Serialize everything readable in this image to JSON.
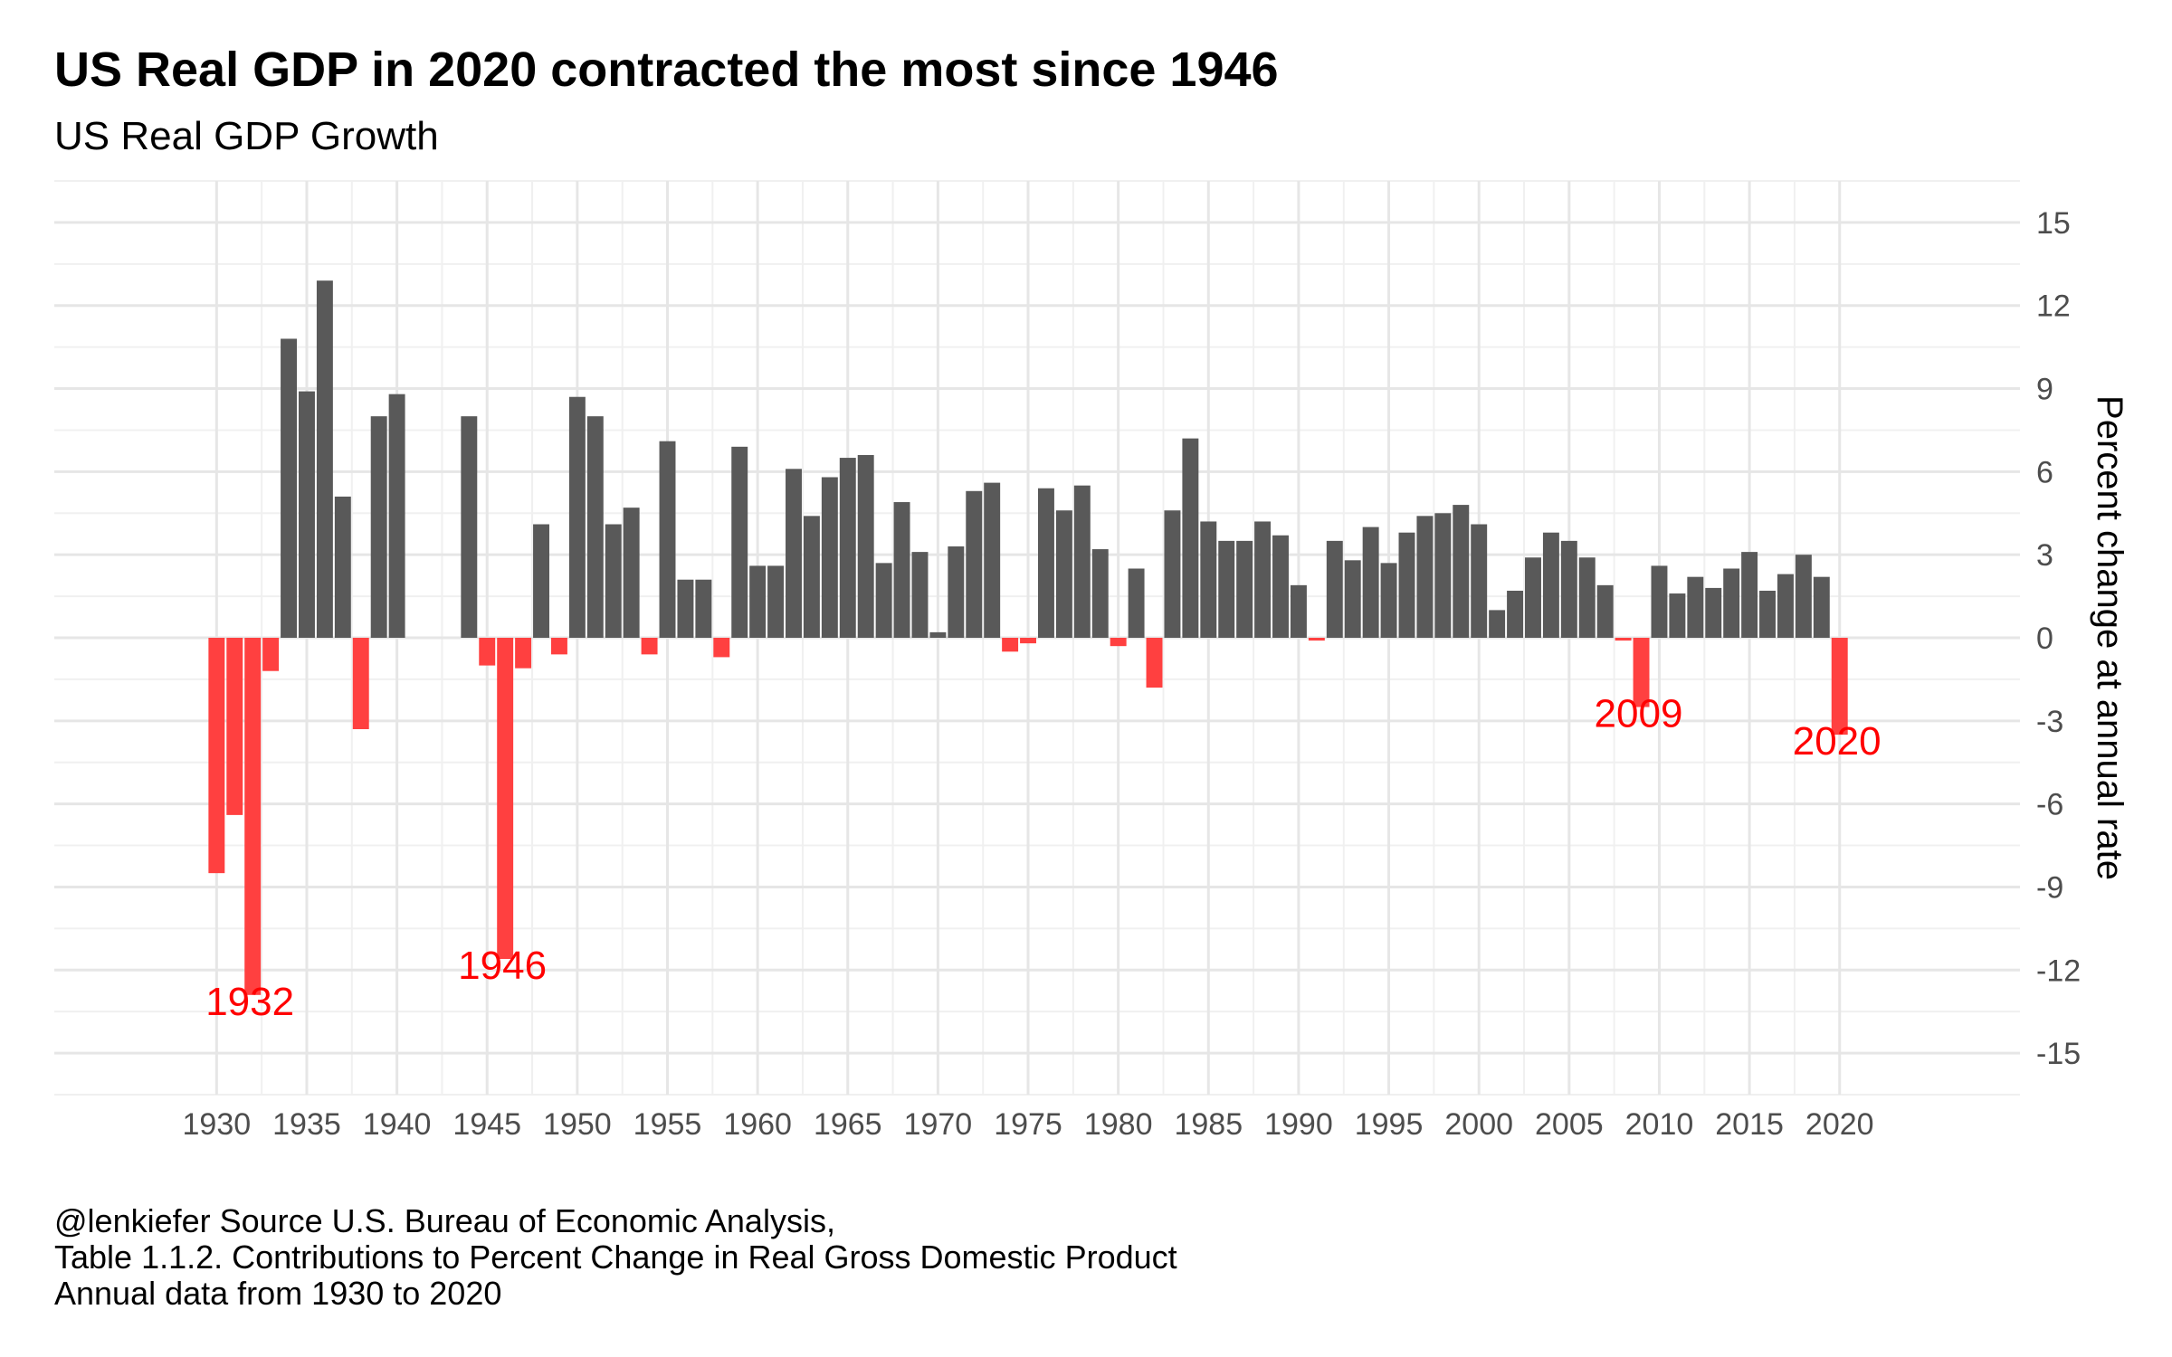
{
  "chart_data": {
    "type": "bar",
    "title": "US Real GDP in 2020 contracted the most since 1946",
    "subtitle": "US Real GDP Growth",
    "ylabel": "Percent change at annual rate",
    "xlabel": "",
    "ylim": [
      -16.5,
      16.5
    ],
    "xlim": [
      1921,
      2030
    ],
    "y_ticks": [
      15,
      12,
      9,
      6,
      3,
      0,
      -3,
      -6,
      -9,
      -12,
      -15
    ],
    "y_tick_labels": [
      "15",
      "12",
      "9",
      "6",
      "3",
      "0",
      "-3",
      "-6",
      "-9",
      "-12",
      "-15"
    ],
    "x_ticks": [
      1930,
      1935,
      1940,
      1945,
      1950,
      1955,
      1960,
      1965,
      1970,
      1975,
      1980,
      1985,
      1990,
      1995,
      2000,
      2005,
      2010,
      2015,
      2020
    ],
    "x_tick_labels": [
      "1930",
      "1935",
      "1940",
      "1945",
      "1950",
      "1955",
      "1960",
      "1965",
      "1970",
      "1975",
      "1980",
      "1985",
      "1990",
      "1995",
      "2000",
      "2005",
      "2010",
      "2015",
      "2020"
    ],
    "grid": true,
    "positive_color": "#595959",
    "negative_color": "#ff4040",
    "annotation_color": "#ff0000",
    "years": [
      1930,
      1931,
      1932,
      1933,
      1934,
      1935,
      1936,
      1937,
      1938,
      1939,
      1940,
      1941,
      1942,
      1943,
      1944,
      1945,
      1946,
      1947,
      1948,
      1949,
      1950,
      1951,
      1952,
      1953,
      1954,
      1955,
      1956,
      1957,
      1958,
      1959,
      1960,
      1961,
      1962,
      1963,
      1964,
      1965,
      1966,
      1967,
      1968,
      1969,
      1970,
      1971,
      1972,
      1973,
      1974,
      1975,
      1976,
      1977,
      1978,
      1979,
      1980,
      1981,
      1982,
      1983,
      1984,
      1985,
      1986,
      1987,
      1988,
      1989,
      1990,
      1991,
      1992,
      1993,
      1994,
      1995,
      1996,
      1997,
      1998,
      1999,
      2000,
      2001,
      2002,
      2003,
      2004,
      2005,
      2006,
      2007,
      2008,
      2009,
      2010,
      2011,
      2012,
      2013,
      2014,
      2015,
      2016,
      2017,
      2018,
      2019,
      2020
    ],
    "values": [
      -8.5,
      -6.4,
      -12.9,
      -1.2,
      10.8,
      8.9,
      12.9,
      5.1,
      -3.3,
      8.0,
      8.8,
      0,
      0,
      0,
      8.0,
      -1.0,
      -11.6,
      -1.1,
      4.1,
      -0.6,
      8.7,
      8.0,
      4.1,
      4.7,
      -0.6,
      7.1,
      2.1,
      2.1,
      -0.7,
      6.9,
      2.6,
      2.6,
      6.1,
      4.4,
      5.8,
      6.5,
      6.6,
      2.7,
      4.9,
      3.1,
      0.2,
      3.3,
      5.3,
      5.6,
      -0.5,
      -0.2,
      5.4,
      4.6,
      5.5,
      3.2,
      -0.3,
      2.5,
      -1.8,
      4.6,
      7.2,
      4.2,
      3.5,
      3.5,
      4.2,
      3.7,
      1.9,
      -0.1,
      3.5,
      2.8,
      4.0,
      2.7,
      3.8,
      4.4,
      4.5,
      4.8,
      4.1,
      1.0,
      1.7,
      2.9,
      3.8,
      3.5,
      2.9,
      1.9,
      -0.1,
      -2.5,
      2.6,
      1.6,
      2.2,
      1.8,
      2.5,
      3.1,
      1.7,
      2.3,
      3.0,
      2.2,
      -3.5
    ],
    "annotations": [
      {
        "label": "1932",
        "year": 1932,
        "y": -13.1
      },
      {
        "label": "1946",
        "year": 1946,
        "y": -11.8
      },
      {
        "label": "2009",
        "year": 2009,
        "y": -2.7
      },
      {
        "label": "2020",
        "year": 2020,
        "y": -3.7
      }
    ]
  },
  "caption": {
    "line1": "@lenkiefer Source U.S. Bureau of Economic Analysis,",
    "line2": "Table 1.1.2. Contributions to Percent Change in Real Gross Domestic Product",
    "line3": "Annual data from 1930 to 2020"
  }
}
